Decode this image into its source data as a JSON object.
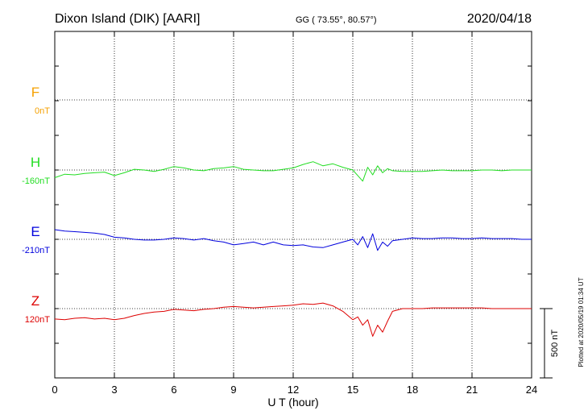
{
  "header": {
    "station": "Dixon Island (DIK)  [AARI]",
    "coords": "GG ( 73.55°,  80.57°)",
    "date": "2020/04/18"
  },
  "chart_data": {
    "type": "line",
    "xlabel": "U T (hour)",
    "xlim": [
      0,
      24
    ],
    "xticks": [
      0,
      3,
      6,
      9,
      12,
      15,
      18,
      21,
      24
    ],
    "grid": true,
    "scale_bar": "500 nT",
    "plotted_note": "Plotted at 2020/05/19 01:34 UT",
    "components": [
      {
        "name": "F",
        "offset_label": "0nT",
        "color": "#f5a000",
        "baseline_nT": 0,
        "values": []
      },
      {
        "name": "H",
        "offset_label": "-160nT",
        "color": "#22dd22",
        "baseline_nT": -160,
        "x": [
          0,
          0.5,
          1,
          1.5,
          2,
          2.5,
          3,
          3.5,
          4,
          4.5,
          5,
          5.5,
          6,
          6.5,
          7,
          7.5,
          8,
          8.5,
          9,
          9.5,
          10,
          10.5,
          11,
          11.5,
          12,
          12.5,
          13,
          13.5,
          14,
          14.5,
          15,
          15.25,
          15.5,
          15.75,
          16,
          16.25,
          16.5,
          16.75,
          17,
          17.5,
          18,
          18.5,
          19,
          19.5,
          20,
          20.5,
          21,
          21.5,
          22,
          22.5,
          23,
          23.5,
          24
        ],
        "y": [
          -55,
          -30,
          -35,
          -25,
          -20,
          -15,
          -40,
          -20,
          5,
          0,
          -10,
          5,
          25,
          15,
          0,
          -5,
          10,
          15,
          25,
          5,
          0,
          -5,
          -5,
          5,
          15,
          40,
          60,
          30,
          45,
          20,
          0,
          -40,
          -80,
          20,
          -35,
          30,
          -20,
          10,
          -5,
          -10,
          -10,
          -10,
          -5,
          0,
          -5,
          -5,
          -5,
          0,
          0,
          -5,
          0,
          0,
          0
        ]
      },
      {
        "name": "E",
        "offset_label": "-210nT",
        "color": "#0000dd",
        "baseline_nT": -210,
        "x": [
          0,
          0.5,
          1,
          1.5,
          2,
          2.5,
          3,
          3.5,
          4,
          4.5,
          5,
          5.5,
          6,
          6.5,
          7,
          7.5,
          8,
          8.5,
          9,
          9.5,
          10,
          10.5,
          11,
          11.5,
          12,
          12.5,
          13,
          13.5,
          14,
          14.5,
          15,
          15.25,
          15.5,
          15.75,
          16,
          16.25,
          16.5,
          16.75,
          17,
          17.5,
          18,
          18.5,
          19,
          19.5,
          20,
          20.5,
          21,
          21.5,
          22,
          22.5,
          23,
          23.5,
          24
        ],
        "y": [
          70,
          60,
          55,
          50,
          45,
          35,
          15,
          10,
          0,
          -5,
          -5,
          0,
          10,
          5,
          -5,
          5,
          -10,
          -20,
          -40,
          -30,
          -20,
          -40,
          -20,
          -40,
          -45,
          -40,
          -55,
          -60,
          -40,
          -20,
          0,
          -40,
          20,
          -60,
          40,
          -80,
          -20,
          -50,
          -10,
          0,
          10,
          5,
          5,
          10,
          10,
          5,
          5,
          10,
          5,
          5,
          5,
          0,
          0
        ]
      },
      {
        "name": "Z",
        "offset_label": "120nT",
        "color": "#dd0000",
        "baseline_nT": 120,
        "x": [
          0,
          0.5,
          1,
          1.5,
          2,
          2.5,
          3,
          3.5,
          4,
          4.5,
          5,
          5.5,
          6,
          6.5,
          7,
          7.5,
          8,
          8.5,
          9,
          9.5,
          10,
          10.5,
          11,
          11.5,
          12,
          12.5,
          13,
          13.5,
          14,
          14.5,
          15,
          15.25,
          15.5,
          15.75,
          16,
          16.25,
          16.5,
          16.75,
          17,
          17.5,
          18,
          18.5,
          19,
          19.5,
          20,
          20.5,
          21,
          21.5,
          22,
          22.5,
          23,
          23.5,
          24
        ],
        "y": [
          -75,
          -80,
          -70,
          -65,
          -75,
          -70,
          -80,
          -70,
          -50,
          -35,
          -25,
          -20,
          -5,
          -10,
          -15,
          -5,
          0,
          10,
          15,
          10,
          5,
          10,
          15,
          20,
          25,
          35,
          30,
          40,
          20,
          -20,
          -80,
          -60,
          -120,
          -80,
          -200,
          -120,
          -170,
          -90,
          -20,
          0,
          0,
          0,
          5,
          5,
          5,
          5,
          5,
          5,
          0,
          0,
          0,
          0,
          0
        ]
      }
    ]
  }
}
